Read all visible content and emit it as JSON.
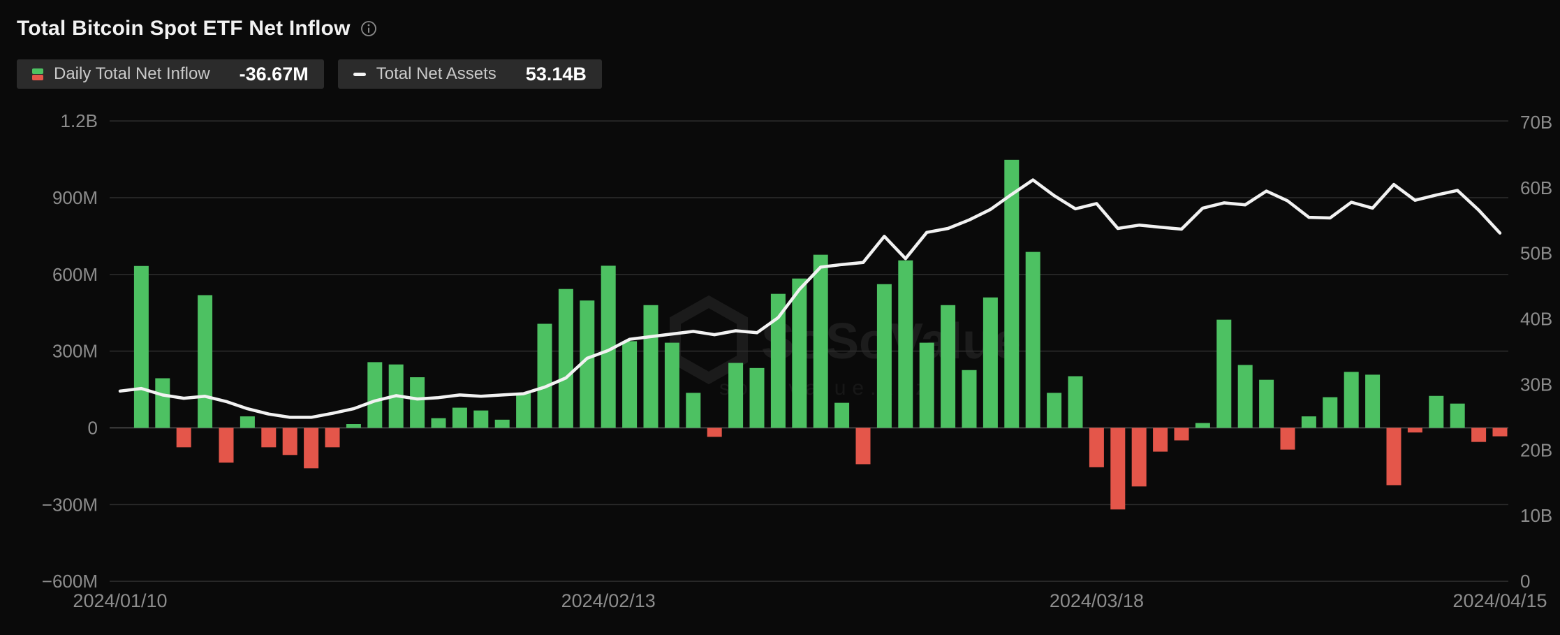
{
  "header": {
    "title": "Total Bitcoin Spot ETF Net Inflow",
    "info_icon": "info-circle"
  },
  "legend": {
    "inflow": {
      "icon": "green-red-split-square",
      "label": "Daily Total Net Inflow",
      "value": "-36.67M"
    },
    "assets": {
      "icon": "white-dash",
      "label": "Total Net Assets",
      "value": "53.14B"
    }
  },
  "watermark": {
    "title": "SoSoValue",
    "subtitle": "sosovalue.xyz"
  },
  "colors": {
    "background": "#0a0a0a",
    "bar_positive": "#4DC162",
    "bar_negative": "#E4564A",
    "line": "#f2f2f2",
    "grid": "#2e2e2e",
    "grid_zero": "#555555",
    "axis_text": "#8d8d8d",
    "pill_bg": "#2b2b2b",
    "title_text": "#f2f2f2",
    "watermark_text": "#ffffff"
  },
  "chart_data": {
    "type": "bar+line",
    "title": "Total Bitcoin Spot ETF Net Inflow",
    "grid": true,
    "legend_position": "top-left",
    "x_tick_labels": [
      "2024/01/10",
      "2024/02/13",
      "2024/03/18",
      "2024/04/15"
    ],
    "x_tick_indices": [
      0,
      23,
      46,
      65
    ],
    "dates": [
      "2024/01/10",
      "2024/01/11",
      "2024/01/12",
      "2024/01/16",
      "2024/01/17",
      "2024/01/18",
      "2024/01/19",
      "2024/01/22",
      "2024/01/23",
      "2024/01/24",
      "2024/01/25",
      "2024/01/26",
      "2024/01/29",
      "2024/01/30",
      "2024/01/31",
      "2024/02/01",
      "2024/02/02",
      "2024/02/05",
      "2024/02/06",
      "2024/02/07",
      "2024/02/08",
      "2024/02/09",
      "2024/02/12",
      "2024/02/13",
      "2024/02/14",
      "2024/02/15",
      "2024/02/16",
      "2024/02/20",
      "2024/02/21",
      "2024/02/22",
      "2024/02/23",
      "2024/02/26",
      "2024/02/27",
      "2024/02/28",
      "2024/02/29",
      "2024/03/01",
      "2024/03/04",
      "2024/03/05",
      "2024/03/06",
      "2024/03/07",
      "2024/03/08",
      "2024/03/11",
      "2024/03/12",
      "2024/03/13",
      "2024/03/14",
      "2024/03/15",
      "2024/03/18",
      "2024/03/19",
      "2024/03/20",
      "2024/03/21",
      "2024/03/22",
      "2024/03/25",
      "2024/03/26",
      "2024/03/27",
      "2024/03/28",
      "2024/04/01",
      "2024/04/02",
      "2024/04/03",
      "2024/04/04",
      "2024/04/05",
      "2024/04/08",
      "2024/04/09",
      "2024/04/10",
      "2024/04/11",
      "2024/04/12",
      "2024/04/15"
    ],
    "series": [
      {
        "name": "Daily Total Net Inflow",
        "type": "bar",
        "axis": "left",
        "unit": "M USD",
        "values": [
          null,
          633,
          194,
          -76,
          519,
          -136,
          45,
          -76,
          -106,
          -158,
          -76,
          15,
          257,
          248,
          198,
          38,
          79,
          68,
          32,
          137,
          407,
          543,
          498,
          634,
          339,
          480,
          333,
          137,
          -35,
          254,
          234,
          524,
          584,
          677,
          98,
          -142,
          562,
          655,
          333,
          480,
          226,
          510,
          1048,
          688,
          137,
          202,
          -154,
          -319,
          -229,
          -93,
          -49,
          19,
          423,
          246,
          188,
          -85,
          45,
          120,
          219,
          208,
          -224,
          -18,
          125,
          95,
          -55,
          -33
        ]
      },
      {
        "name": "Total Net Assets",
        "type": "line",
        "axis": "right",
        "unit": "B USD",
        "values": [
          29.0,
          29.4,
          28.4,
          27.9,
          28.2,
          27.4,
          26.3,
          25.5,
          25.0,
          25.0,
          25.6,
          26.3,
          27.5,
          28.3,
          27.8,
          28.0,
          28.4,
          28.2,
          28.4,
          28.6,
          29.6,
          31.0,
          34.0,
          35.2,
          36.9,
          37.3,
          37.7,
          38.1,
          37.6,
          38.2,
          37.9,
          40.2,
          44.5,
          47.9,
          48.3,
          48.6,
          52.6,
          49.2,
          53.2,
          53.8,
          55.1,
          56.7,
          59.0,
          61.2,
          58.8,
          56.8,
          57.6,
          53.8,
          54.3,
          54.0,
          53.7,
          56.9,
          57.7,
          57.4,
          59.5,
          58.0,
          55.5,
          55.4,
          57.8,
          56.9,
          60.5,
          58.1,
          58.9,
          59.6,
          56.6,
          53.1
        ]
      }
    ],
    "left_axis": {
      "range_M": [
        -600,
        1200
      ],
      "ticks": [
        {
          "label": "1.2B",
          "value": 1200
        },
        {
          "label": "900M",
          "value": 900
        },
        {
          "label": "600M",
          "value": 600
        },
        {
          "label": "300M",
          "value": 300
        },
        {
          "label": "0",
          "value": 0
        },
        {
          "label": "−300M",
          "value": -300
        },
        {
          "label": "−600M",
          "value": -600
        }
      ]
    },
    "right_axis": {
      "range_B": [
        0,
        70
      ],
      "ticks": [
        {
          "label": "70B",
          "value": 70
        },
        {
          "label": "60B",
          "value": 60
        },
        {
          "label": "50B",
          "value": 50
        },
        {
          "label": "40B",
          "value": 40
        },
        {
          "label": "30B",
          "value": 30
        },
        {
          "label": "20B",
          "value": 20
        },
        {
          "label": "10B",
          "value": 10
        },
        {
          "label": "0",
          "value": 0
        }
      ]
    }
  }
}
